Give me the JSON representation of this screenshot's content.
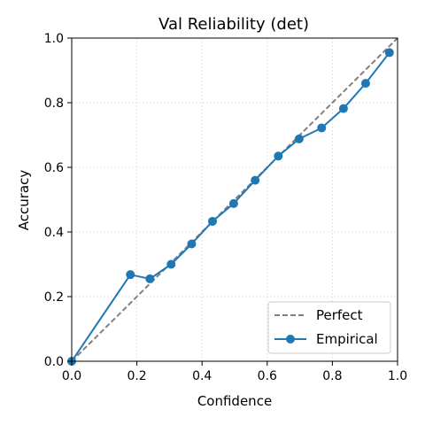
{
  "chart_data": {
    "type": "line",
    "title": "Val Reliability (det)",
    "xlabel": "Confidence",
    "ylabel": "Accuracy",
    "xlim": [
      0.0,
      1.0
    ],
    "ylim": [
      0.0,
      1.0
    ],
    "xticks": [
      "0.0",
      "0.2",
      "0.4",
      "0.6",
      "0.8",
      "1.0"
    ],
    "yticks": [
      "0.0",
      "0.2",
      "0.4",
      "0.6",
      "0.8",
      "1.0"
    ],
    "grid": true,
    "grid_style": "dotted",
    "legend_position": "lower-right",
    "series": [
      {
        "name": "Perfect",
        "style": "dashed",
        "color": "#808080",
        "markers": false,
        "x": [
          0.0,
          1.0
        ],
        "y": [
          0.0,
          1.0
        ]
      },
      {
        "name": "Empirical",
        "style": "solid",
        "color": "#1f77b4",
        "markers": true,
        "x": [
          0.0,
          0.18,
          0.24,
          0.305,
          0.368,
          0.432,
          0.497,
          0.563,
          0.634,
          0.698,
          0.767,
          0.834,
          0.902,
          0.975
        ],
        "y": [
          0.0,
          0.268,
          0.255,
          0.3,
          0.363,
          0.433,
          0.488,
          0.56,
          0.635,
          0.688,
          0.722,
          0.782,
          0.86,
          0.955
        ]
      }
    ]
  }
}
